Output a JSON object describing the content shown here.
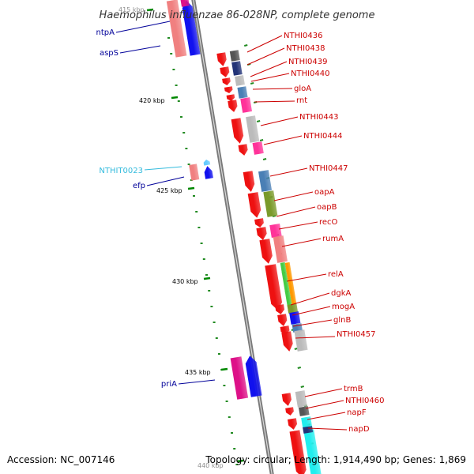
{
  "title": "Haemophilus influenzae 86-028NP, complete genome",
  "accession_text": "Accession: NC_007146",
  "stats_text": "Topology: circular; Length: 1,914,490 bp; Genes: 1,869",
  "colors": {
    "backbone": "#999999",
    "forward_label": "#cc0000",
    "reverse_label": "#000099",
    "rna_label": "#33bbdd",
    "ticks": "#008800"
  },
  "scale_ticks": [
    {
      "label": "415 kbp"
    },
    {
      "label": "420 kbp"
    },
    {
      "label": "425 kbp"
    },
    {
      "label": "430 kbp"
    },
    {
      "label": "435 kbp"
    },
    {
      "label": "440 kbp"
    }
  ],
  "genes": [
    {
      "name": "ntpA",
      "strand": "reverse"
    },
    {
      "name": "aspS",
      "strand": "reverse"
    },
    {
      "name": "NTHI0436",
      "strand": "forward"
    },
    {
      "name": "NTHI0438",
      "strand": "forward"
    },
    {
      "name": "NTHI0439",
      "strand": "forward"
    },
    {
      "name": "NTHI0440",
      "strand": "forward"
    },
    {
      "name": "gloA",
      "strand": "forward"
    },
    {
      "name": "rnt",
      "strand": "forward"
    },
    {
      "name": "NTHI0443",
      "strand": "forward"
    },
    {
      "name": "NTHI0444",
      "strand": "forward"
    },
    {
      "name": "NTHIT0023",
      "strand": "rna"
    },
    {
      "name": "efp",
      "strand": "reverse"
    },
    {
      "name": "NTHI0447",
      "strand": "forward"
    },
    {
      "name": "oapA",
      "strand": "forward"
    },
    {
      "name": "oapB",
      "strand": "forward"
    },
    {
      "name": "recO",
      "strand": "forward"
    },
    {
      "name": "rumA",
      "strand": "forward"
    },
    {
      "name": "relA",
      "strand": "forward"
    },
    {
      "name": "dgkA",
      "strand": "forward"
    },
    {
      "name": "mogA",
      "strand": "forward"
    },
    {
      "name": "glnB",
      "strand": "forward"
    },
    {
      "name": "NTHI0457",
      "strand": "forward"
    },
    {
      "name": "priA",
      "strand": "reverse"
    },
    {
      "name": "trmB",
      "strand": "forward"
    },
    {
      "name": "NTHI0460",
      "strand": "forward"
    },
    {
      "name": "napF",
      "strand": "forward"
    },
    {
      "name": "napD",
      "strand": "forward"
    }
  ]
}
